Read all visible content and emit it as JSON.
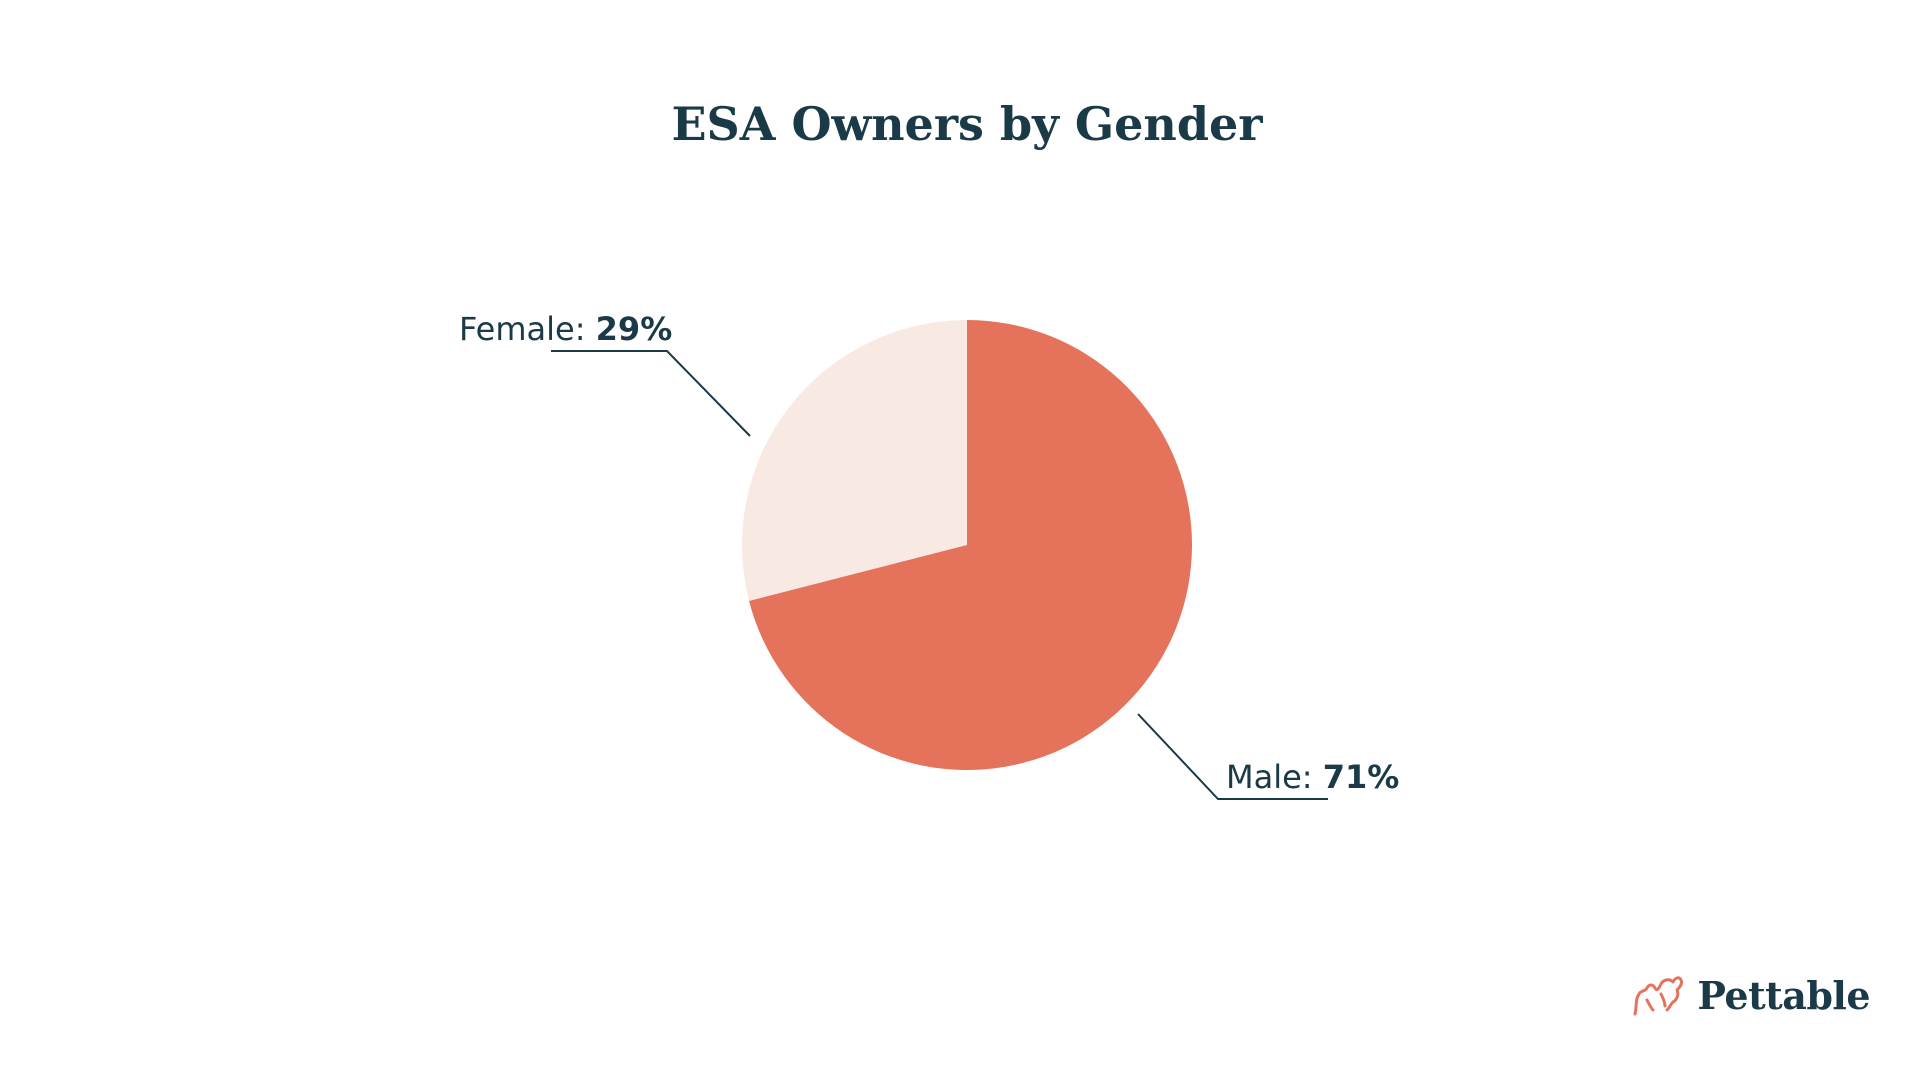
{
  "chart_data": {
    "type": "pie",
    "title": "ESA Owners by Gender",
    "slices": [
      {
        "label": "Female",
        "value": 29,
        "display": "29%",
        "color": "#f9e9e3"
      },
      {
        "label": "Male",
        "value": 71,
        "display": "71%",
        "color": "#e5735c"
      }
    ],
    "start": "top",
    "direction": "counterclockwise-for-first-slice"
  },
  "brand": {
    "name": "Pettable",
    "logo_icon": "pet-outline-logo",
    "logo_color": "#e5735c"
  }
}
